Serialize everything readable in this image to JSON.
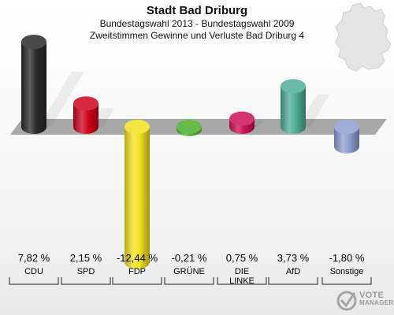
{
  "header": {
    "title": "Stadt Bad Driburg",
    "subtitle": "Bundestagswahl 2013 - Bundestagswahl 2009",
    "subtitle2": "Zweitstimmen Gewinne und Verluste Bad Driburg 4"
  },
  "logo": {
    "line1": "VOTE",
    "line2": "MANAGER"
  },
  "colors": {
    "CDU": "#2a2a2a",
    "SPD": "#d0021b",
    "FDP": "#f2e11e",
    "GRUENE": "#4caf2a",
    "LINKE": "#cc1155",
    "AfD": "#4fae96",
    "Sonstige": "#8f9fd0",
    "baseline": "#a8a8a8"
  },
  "chart_data": {
    "type": "bar",
    "title": "Zweitstimmen Gewinne und Verluste Bad Driburg 4",
    "categories": [
      "CDU",
      "SPD",
      "FDP",
      "GRÜNE",
      "DIE LINKE",
      "AfD",
      "Sonstige"
    ],
    "category_lines": [
      [
        "CDU"
      ],
      [
        "SPD"
      ],
      [
        "FDP"
      ],
      [
        "GRÜNE"
      ],
      [
        "DIE",
        "LINKE"
      ],
      [
        "AfD"
      ],
      [
        "Sonstige"
      ]
    ],
    "values": [
      7.82,
      2.15,
      -12.44,
      -0.21,
      0.75,
      3.73,
      -1.8
    ],
    "labels": [
      "7,82 %",
      "2,15 %",
      "-12,44 %",
      "-0,21 %",
      "0,75 %",
      "3,73 %",
      "-1,80 %"
    ],
    "unit": "%",
    "ylim": [
      -13,
      8.5
    ]
  }
}
